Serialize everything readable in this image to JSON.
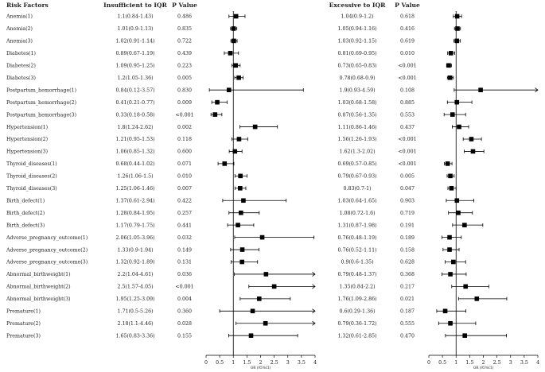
{
  "chart_data": [
    {
      "type": "forest",
      "title": "Insufficient to IQR",
      "headers": {
        "factor": "Risk Factors",
        "estimate": "Insufficient to IQR",
        "p": "P Value"
      },
      "xlabel": "OR (95%CI)",
      "xlim": [
        0,
        4
      ],
      "xticks": [
        "0",
        "0.5",
        "1",
        "1.5",
        "2",
        "2.5",
        "3",
        "3.5",
        "4"
      ],
      "reference_line": 1,
      "rows": [
        {
          "factor": "Anemia(1)",
          "est_text": "1.1(0.84-1.43)",
          "p": "0.486",
          "or": 1.1,
          "lo": 0.84,
          "hi": 1.43
        },
        {
          "factor": "Anemia(2)",
          "est_text": "1.01(0.9-1.13)",
          "p": "0.835",
          "or": 1.01,
          "lo": 0.9,
          "hi": 1.13
        },
        {
          "factor": "Anemia(3)",
          "est_text": "1.02(0.91-1.14)",
          "p": "0.722",
          "or": 1.02,
          "lo": 0.91,
          "hi": 1.14
        },
        {
          "factor": "Diabetes(1)",
          "est_text": "0.89(0.67-1.19)",
          "p": "0.439",
          "or": 0.89,
          "lo": 0.67,
          "hi": 1.19
        },
        {
          "factor": "Diabetes(2)",
          "est_text": "1.09(0.95-1.25)",
          "p": "0.223",
          "or": 1.09,
          "lo": 0.95,
          "hi": 1.25
        },
        {
          "factor": "Diabetes(3)",
          "est_text": "1.2(1.05-1.36)",
          "p": "0.005",
          "or": 1.2,
          "lo": 1.05,
          "hi": 1.36
        },
        {
          "factor": "Postpartum_hemorrhage(1)",
          "est_text": "0.84(0.12-3.57)",
          "p": "0.830",
          "or": 0.84,
          "lo": 0.12,
          "hi": 3.57
        },
        {
          "factor": "Postpartum_hemorrhage(2)",
          "est_text": "0.41(0.21-0.77)",
          "p": "0.009",
          "or": 0.41,
          "lo": 0.21,
          "hi": 0.77
        },
        {
          "factor": "Postpartum_hemorrhage(3)",
          "est_text": "0.33(0.18-0.58)",
          "p": "<0.001",
          "or": 0.33,
          "lo": 0.18,
          "hi": 0.58
        },
        {
          "factor": "Hypertension(1)",
          "est_text": "1.8(1.24-2.62)",
          "p": "0.002",
          "or": 1.8,
          "lo": 1.24,
          "hi": 2.62
        },
        {
          "factor": "Hypertension(2)",
          "est_text": "1.21(0.95-1.53)",
          "p": "0.118",
          "or": 1.21,
          "lo": 0.95,
          "hi": 1.53
        },
        {
          "factor": "Hypertension(3)",
          "est_text": "1.06(0.85-1.32)",
          "p": "0.600",
          "or": 1.06,
          "lo": 0.85,
          "hi": 1.32
        },
        {
          "factor": "Thyroid_diseases(1)",
          "est_text": "0.68(0.44-1.02)",
          "p": "0.071",
          "or": 0.68,
          "lo": 0.44,
          "hi": 1.02
        },
        {
          "factor": "Thyroid_diseases(2)",
          "est_text": "1.26(1.06-1.5)",
          "p": "0.010",
          "or": 1.26,
          "lo": 1.06,
          "hi": 1.5
        },
        {
          "factor": "Thyroid_diseases(3)",
          "est_text": "1.25(1.06-1.46)",
          "p": "0.007",
          "or": 1.25,
          "lo": 1.06,
          "hi": 1.46
        },
        {
          "factor": "Birth_defect(1)",
          "est_text": "1.37(0.61-2.94)",
          "p": "0.422",
          "or": 1.37,
          "lo": 0.61,
          "hi": 2.94
        },
        {
          "factor": "Birth_defect(2)",
          "est_text": "1.28(0.84-1.95)",
          "p": "0.257",
          "or": 1.28,
          "lo": 0.84,
          "hi": 1.95
        },
        {
          "factor": "Birth_defect(3)",
          "est_text": "1.17(0.79-1.75)",
          "p": "0.441",
          "or": 1.17,
          "lo": 0.79,
          "hi": 1.75
        },
        {
          "factor": "Adverse_pregnancy_outcome(1)",
          "est_text": "2.06(1.05-3.96)",
          "p": "0.032",
          "or": 2.06,
          "lo": 1.05,
          "hi": 3.96
        },
        {
          "factor": "Adverse_pregnancy_outcome(2)",
          "est_text": "1.33(0.9-1.94)",
          "p": "0.149",
          "or": 1.33,
          "lo": 0.9,
          "hi": 1.94
        },
        {
          "factor": "Adverse_pregnancy_outcome(3)",
          "est_text": "1.32(0.92-1.89)",
          "p": "0.131",
          "or": 1.32,
          "lo": 0.92,
          "hi": 1.89
        },
        {
          "factor": "Abnormal_birthweight(1)",
          "est_text": "2.2(1.04-4.61)",
          "p": "0.036",
          "or": 2.2,
          "lo": 1.04,
          "hi": 4.61
        },
        {
          "factor": "Abnormal_birthweight(2)",
          "est_text": "2.5(1.57-4.05)",
          "p": "<0.001",
          "or": 2.5,
          "lo": 1.57,
          "hi": 4.05
        },
        {
          "factor": "Abnormal_birthweight(3)",
          "est_text": "1.95(1.25-3.09)",
          "p": "0.004",
          "or": 1.95,
          "lo": 1.25,
          "hi": 3.09
        },
        {
          "factor": "Premature(1)",
          "est_text": "1.71(0.5-5.26)",
          "p": "0.360",
          "or": 1.71,
          "lo": 0.5,
          "hi": 5.26
        },
        {
          "factor": "Premature(2)",
          "est_text": "2.18(1.1-4.46)",
          "p": "0.028",
          "or": 2.18,
          "lo": 1.1,
          "hi": 4.46
        },
        {
          "factor": "Premature(3)",
          "est_text": "1.65(0.83-3.36)",
          "p": "0.155",
          "or": 1.65,
          "lo": 0.83,
          "hi": 3.36
        }
      ]
    },
    {
      "type": "forest",
      "title": "Excessive to IQR",
      "headers": {
        "estimate": "Excessive to IQR",
        "p": "P Value"
      },
      "xlabel": "OR (95%CI)",
      "xlim": [
        0,
        4
      ],
      "xticks": [
        "0",
        "0.5",
        "1",
        "1.5",
        "2",
        "2.5",
        "3",
        "3.5",
        "4"
      ],
      "reference_line": 1,
      "rows": [
        {
          "est_text": "1.04(0.9-1.2)",
          "p": "0.618",
          "or": 1.04,
          "lo": 0.9,
          "hi": 1.2
        },
        {
          "est_text": "1.05(0.94-1.16)",
          "p": "0.416",
          "or": 1.05,
          "lo": 0.94,
          "hi": 1.16
        },
        {
          "est_text": "1.03(0.92-1.15)",
          "p": "0.619",
          "or": 1.03,
          "lo": 0.92,
          "hi": 1.15
        },
        {
          "est_text": "0.81(0.69-0.95)",
          "p": "0.010",
          "or": 0.81,
          "lo": 0.69,
          "hi": 0.95
        },
        {
          "est_text": "0.73(0.65-0.83)",
          "p": "<0.001",
          "or": 0.73,
          "lo": 0.65,
          "hi": 0.83
        },
        {
          "est_text": "0.78(0.68-0.9)",
          "p": "<0.001",
          "or": 0.78,
          "lo": 0.68,
          "hi": 0.9
        },
        {
          "est_text": "1.9(0.93-4.59)",
          "p": "0.108",
          "or": 1.9,
          "lo": 0.93,
          "hi": 4.59
        },
        {
          "est_text": "1.03(0.68-1.58)",
          "p": "0.885",
          "or": 1.03,
          "lo": 0.68,
          "hi": 1.58
        },
        {
          "est_text": "0.87(0.56-1.35)",
          "p": "0.553",
          "or": 0.87,
          "lo": 0.56,
          "hi": 1.35
        },
        {
          "est_text": "1.11(0.86-1.46)",
          "p": "0.437",
          "or": 1.11,
          "lo": 0.86,
          "hi": 1.46
        },
        {
          "est_text": "1.56(1.26-1.93)",
          "p": "<0.001",
          "or": 1.56,
          "lo": 1.26,
          "hi": 1.93
        },
        {
          "est_text": "1.62(1.3-2.02)",
          "p": "<0.001",
          "or": 1.62,
          "lo": 1.3,
          "hi": 2.02
        },
        {
          "est_text": "0.69(0.57-0.85)",
          "p": "<0.001",
          "or": 0.69,
          "lo": 0.57,
          "hi": 0.85
        },
        {
          "est_text": "0.79(0.67-0.93)",
          "p": "0.005",
          "or": 0.79,
          "lo": 0.67,
          "hi": 0.93
        },
        {
          "est_text": "0.83(0.7-1)",
          "p": "0.047",
          "or": 0.83,
          "lo": 0.7,
          "hi": 1.0
        },
        {
          "est_text": "1.03(0.64-1.65)",
          "p": "0.903",
          "or": 1.03,
          "lo": 0.64,
          "hi": 1.65
        },
        {
          "est_text": "1.08(0.72-1.6)",
          "p": "0.719",
          "or": 1.08,
          "lo": 0.72,
          "hi": 1.6
        },
        {
          "est_text": "1.31(0.87-1.98)",
          "p": "0.191",
          "or": 1.31,
          "lo": 0.87,
          "hi": 1.98
        },
        {
          "est_text": "0.76(0.48-1.19)",
          "p": "0.189",
          "or": 0.76,
          "lo": 0.48,
          "hi": 1.19
        },
        {
          "est_text": "0.76(0.52-1.11)",
          "p": "0.158",
          "or": 0.76,
          "lo": 0.52,
          "hi": 1.11
        },
        {
          "est_text": "0.9(0.6-1.35)",
          "p": "0.628",
          "or": 0.9,
          "lo": 0.6,
          "hi": 1.35
        },
        {
          "est_text": "0.79(0.48-1.37)",
          "p": "0.368",
          "or": 0.79,
          "lo": 0.48,
          "hi": 1.37
        },
        {
          "est_text": "1.35(0.84-2.2)",
          "p": "0.217",
          "or": 1.35,
          "lo": 0.84,
          "hi": 2.2
        },
        {
          "est_text": "1.76(1.09-2.86)",
          "p": "0.021",
          "or": 1.76,
          "lo": 1.09,
          "hi": 2.86
        },
        {
          "est_text": "0.6(0.29-1.36)",
          "p": "0.187",
          "or": 0.6,
          "lo": 0.29,
          "hi": 1.36
        },
        {
          "est_text": "0.79(0.36-1.72)",
          "p": "0.555",
          "or": 0.79,
          "lo": 0.36,
          "hi": 1.72
        },
        {
          "est_text": "1.32(0.61-2.85)",
          "p": "0.470",
          "or": 1.32,
          "lo": 0.61,
          "hi": 2.85
        }
      ]
    }
  ]
}
